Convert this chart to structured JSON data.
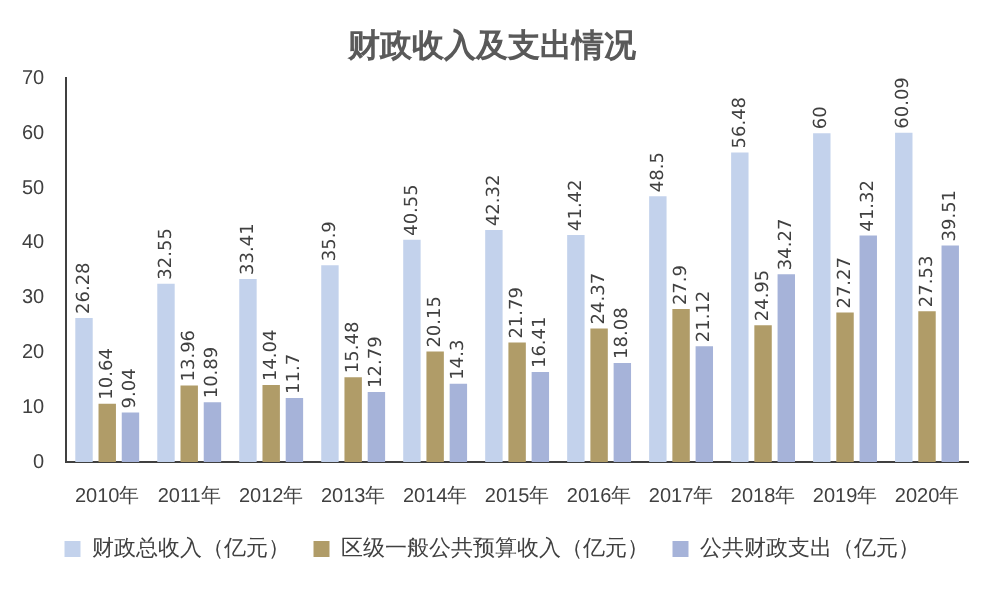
{
  "chart_data": {
    "type": "bar",
    "title": "财政收入及支出情况",
    "categories": [
      "2010年",
      "2011年",
      "2012年",
      "2013年",
      "2014年",
      "2015年",
      "2016年",
      "2017年",
      "2018年",
      "2019年",
      "2020年"
    ],
    "series": [
      {
        "name": "财政总收入（亿元）",
        "color": "#c3d2ec",
        "values": [
          26.28,
          32.55,
          33.41,
          35.9,
          40.55,
          42.32,
          41.42,
          48.5,
          56.48,
          60,
          60.09
        ]
      },
      {
        "name": "区级一般公共预算收入（亿元）",
        "color": "#b09c68",
        "values": [
          10.64,
          13.96,
          14.04,
          15.48,
          20.15,
          21.79,
          24.37,
          27.9,
          24.95,
          27.27,
          27.53
        ]
      },
      {
        "name": "公共财政支出（亿元）",
        "color": "#a6b3d9",
        "values": [
          9.04,
          10.89,
          11.7,
          12.79,
          14.3,
          16.41,
          18.08,
          21.12,
          34.27,
          41.32,
          39.51
        ]
      }
    ],
    "ylim": [
      0,
      70
    ],
    "yticks": [
      0,
      10,
      20,
      30,
      40,
      50,
      60,
      70
    ],
    "grid": false,
    "legend": "bottom",
    "data_labels": true
  }
}
